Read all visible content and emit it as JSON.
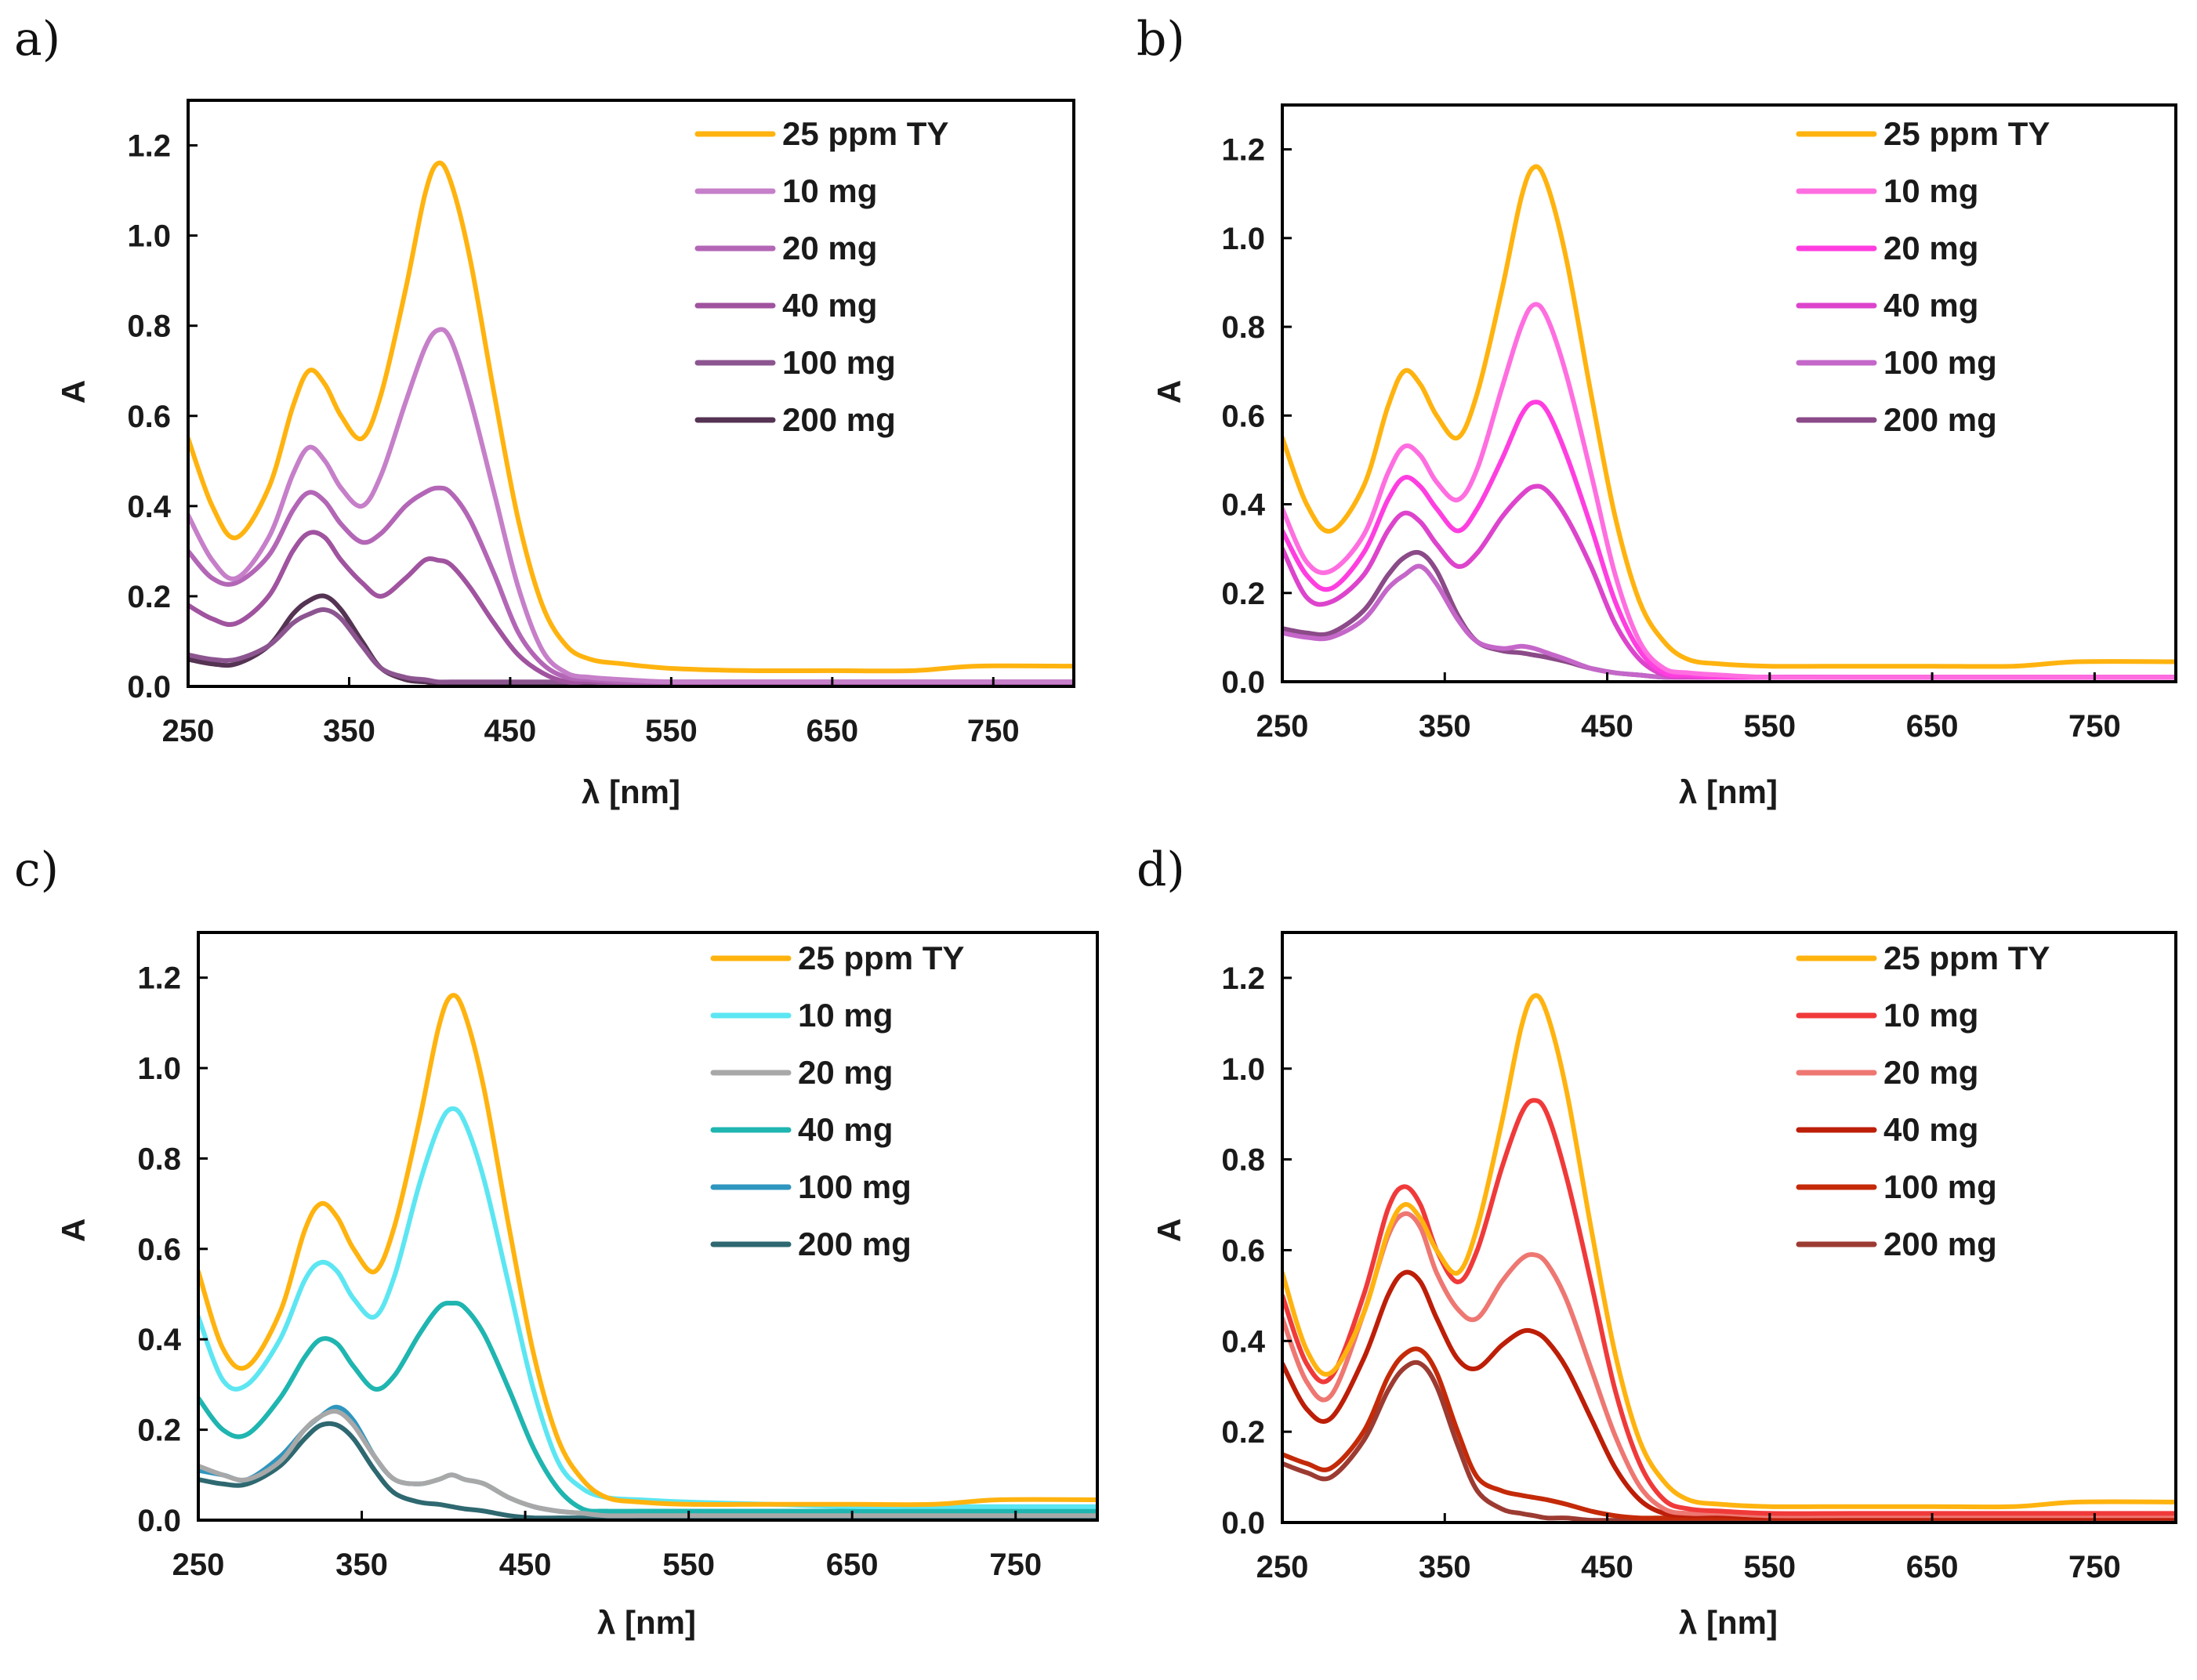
{
  "chart_data": [
    {
      "panel": "a)",
      "type": "line",
      "xlabel": "λ [nm]",
      "ylabel": "A",
      "xlim": [
        250,
        800
      ],
      "ylim": [
        0,
        1.3
      ],
      "xticks": [
        250,
        350,
        450,
        550,
        650,
        750
      ],
      "xtick_labels": [
        "250",
        "350",
        "450",
        "550",
        "650",
        "750"
      ],
      "yticks": [
        0,
        0.2,
        0.4,
        0.6,
        0.8,
        1.0,
        1.2
      ],
      "ytick_labels": [
        "0.0",
        "0.2",
        "0.4",
        "0.6",
        "0.8",
        "1.0",
        "1.2"
      ],
      "legend_position": "top-right",
      "x": [
        250,
        265,
        280,
        300,
        315,
        325,
        335,
        345,
        358,
        370,
        385,
        397,
        405,
        413,
        425,
        440,
        455,
        470,
        485,
        500,
        520,
        550,
        600,
        650,
        700,
        740,
        800
      ],
      "series": [
        {
          "name": "25 ppm TY",
          "color": "#ffb30f",
          "values": [
            0.55,
            0.4,
            0.33,
            0.44,
            0.62,
            0.7,
            0.67,
            0.6,
            0.55,
            0.65,
            0.88,
            1.09,
            1.16,
            1.12,
            0.95,
            0.65,
            0.37,
            0.18,
            0.09,
            0.06,
            0.05,
            0.04,
            0.035,
            0.035,
            0.035,
            0.045,
            0.045
          ]
        },
        {
          "name": "10 mg",
          "color": "#c67fc9",
          "values": [
            0.38,
            0.28,
            0.24,
            0.33,
            0.47,
            0.53,
            0.5,
            0.44,
            0.4,
            0.47,
            0.63,
            0.75,
            0.79,
            0.77,
            0.64,
            0.43,
            0.22,
            0.08,
            0.03,
            0.02,
            0.015,
            0.01,
            0.01,
            0.01,
            0.01,
            0.01,
            0.01
          ]
        },
        {
          "name": "20 mg",
          "color": "#b366b6",
          "values": [
            0.3,
            0.24,
            0.23,
            0.29,
            0.39,
            0.43,
            0.41,
            0.36,
            0.32,
            0.34,
            0.4,
            0.43,
            0.44,
            0.43,
            0.37,
            0.25,
            0.12,
            0.05,
            0.02,
            0.015,
            0.01,
            0.01,
            0.01,
            0.01,
            0.01,
            0.01,
            0.01
          ]
        },
        {
          "name": "40 mg",
          "color": "#a0539f",
          "values": [
            0.18,
            0.15,
            0.14,
            0.2,
            0.3,
            0.34,
            0.33,
            0.28,
            0.23,
            0.2,
            0.24,
            0.28,
            0.28,
            0.27,
            0.22,
            0.14,
            0.07,
            0.03,
            0.01,
            0.01,
            0.005,
            0.005,
            0.005,
            0.005,
            0.005,
            0.005,
            0.005
          ]
        },
        {
          "name": "100 mg",
          "color": "#8c5590",
          "values": [
            0.07,
            0.06,
            0.06,
            0.09,
            0.14,
            0.16,
            0.17,
            0.15,
            0.09,
            0.04,
            0.02,
            0.015,
            0.01,
            0.01,
            0.01,
            0.01,
            0.01,
            0.01,
            0.01,
            0.01,
            0.01,
            0.01,
            0.01,
            0.01,
            0.01,
            0.01,
            0.01
          ]
        },
        {
          "name": "200 mg",
          "color": "#553353",
          "values": [
            0.06,
            0.05,
            0.05,
            0.09,
            0.16,
            0.19,
            0.2,
            0.17,
            0.1,
            0.04,
            0.015,
            0.01,
            0.005,
            0.005,
            0.005,
            0.005,
            0.005,
            0.005,
            0.005,
            0.005,
            0.005,
            0.005,
            0.005,
            0.005,
            0.005,
            0.005,
            0.005
          ]
        }
      ]
    },
    {
      "panel": "b)",
      "type": "line",
      "xlabel": "λ [nm]",
      "ylabel": "A",
      "xlim": [
        250,
        800
      ],
      "ylim": [
        0,
        1.3
      ],
      "xticks": [
        250,
        350,
        450,
        550,
        650,
        750
      ],
      "xtick_labels": [
        "250",
        "350",
        "450",
        "550",
        "650",
        "750"
      ],
      "yticks": [
        0,
        0.2,
        0.4,
        0.6,
        0.8,
        1.0,
        1.2
      ],
      "ytick_labels": [
        "0.0",
        "0.2",
        "0.4",
        "0.6",
        "0.8",
        "1.0",
        "1.2"
      ],
      "legend_position": "top-right",
      "x": [
        250,
        265,
        280,
        300,
        315,
        325,
        335,
        345,
        358,
        370,
        385,
        397,
        405,
        413,
        425,
        440,
        455,
        470,
        485,
        500,
        520,
        550,
        600,
        650,
        700,
        740,
        800
      ],
      "series": [
        {
          "name": "25 ppm TY",
          "color": "#ffb30f",
          "values": [
            0.55,
            0.4,
            0.34,
            0.44,
            0.62,
            0.7,
            0.67,
            0.6,
            0.55,
            0.65,
            0.88,
            1.09,
            1.16,
            1.12,
            0.95,
            0.65,
            0.37,
            0.18,
            0.09,
            0.05,
            0.04,
            0.035,
            0.035,
            0.035,
            0.035,
            0.045,
            0.045
          ]
        },
        {
          "name": "10 mg",
          "color": "#ff6ee0",
          "values": [
            0.39,
            0.27,
            0.25,
            0.33,
            0.47,
            0.53,
            0.51,
            0.45,
            0.41,
            0.48,
            0.66,
            0.8,
            0.85,
            0.82,
            0.69,
            0.47,
            0.24,
            0.09,
            0.03,
            0.02,
            0.015,
            0.01,
            0.01,
            0.01,
            0.01,
            0.01,
            0.01
          ]
        },
        {
          "name": "20 mg",
          "color": "#ff3ee0",
          "values": [
            0.34,
            0.24,
            0.21,
            0.29,
            0.41,
            0.46,
            0.44,
            0.39,
            0.34,
            0.39,
            0.5,
            0.6,
            0.63,
            0.61,
            0.51,
            0.35,
            0.18,
            0.07,
            0.02,
            0.015,
            0.01,
            0.01,
            0.01,
            0.01,
            0.01,
            0.01,
            0.01
          ]
        },
        {
          "name": "40 mg",
          "color": "#dd44cc",
          "values": [
            0.3,
            0.19,
            0.18,
            0.24,
            0.34,
            0.38,
            0.36,
            0.31,
            0.26,
            0.29,
            0.37,
            0.42,
            0.44,
            0.43,
            0.37,
            0.26,
            0.13,
            0.05,
            0.015,
            0.01,
            0.01,
            0.01,
            0.01,
            0.01,
            0.01,
            0.01,
            0.01
          ]
        },
        {
          "name": "100 mg",
          "color": "#c467c9",
          "values": [
            0.11,
            0.1,
            0.1,
            0.14,
            0.21,
            0.24,
            0.26,
            0.22,
            0.14,
            0.09,
            0.075,
            0.08,
            0.075,
            0.065,
            0.05,
            0.03,
            0.02,
            0.015,
            0.01,
            0.01,
            0.01,
            0.01,
            0.01,
            0.01,
            0.01,
            0.01,
            0.01
          ]
        },
        {
          "name": "200 mg",
          "color": "#8b4a88",
          "values": [
            0.12,
            0.11,
            0.11,
            0.16,
            0.24,
            0.28,
            0.29,
            0.25,
            0.15,
            0.09,
            0.07,
            0.065,
            0.06,
            0.055,
            0.045,
            0.03,
            0.02,
            0.015,
            0.01,
            0.01,
            0.01,
            0.01,
            0.01,
            0.01,
            0.01,
            0.01,
            0.01
          ]
        }
      ]
    },
    {
      "panel": "c)",
      "type": "line",
      "xlabel": "λ [nm]",
      "ylabel": "A",
      "xlim": [
        250,
        800
      ],
      "ylim": [
        0,
        1.3
      ],
      "xticks": [
        250,
        350,
        450,
        550,
        650,
        750
      ],
      "xtick_labels": [
        "250",
        "350",
        "450",
        "550",
        "650",
        "750"
      ],
      "yticks": [
        0,
        0.2,
        0.4,
        0.6,
        0.8,
        1.0,
        1.2
      ],
      "ytick_labels": [
        "0.0",
        "0.2",
        "0.4",
        "0.6",
        "0.8",
        "1.0",
        "1.2"
      ],
      "legend_position": "top-right",
      "x": [
        250,
        265,
        280,
        300,
        315,
        325,
        335,
        345,
        358,
        370,
        385,
        397,
        405,
        413,
        425,
        440,
        455,
        470,
        485,
        500,
        520,
        550,
        600,
        650,
        700,
        740,
        800
      ],
      "series": [
        {
          "name": "25 ppm TY",
          "color": "#ffb30f",
          "values": [
            0.55,
            0.38,
            0.34,
            0.46,
            0.64,
            0.7,
            0.67,
            0.6,
            0.55,
            0.65,
            0.88,
            1.09,
            1.16,
            1.12,
            0.95,
            0.65,
            0.37,
            0.18,
            0.09,
            0.05,
            0.04,
            0.035,
            0.035,
            0.035,
            0.035,
            0.045,
            0.045
          ]
        },
        {
          "name": "10 mg",
          "color": "#5ce6f2",
          "values": [
            0.45,
            0.31,
            0.3,
            0.4,
            0.53,
            0.57,
            0.55,
            0.49,
            0.45,
            0.54,
            0.74,
            0.87,
            0.91,
            0.88,
            0.75,
            0.52,
            0.29,
            0.13,
            0.07,
            0.05,
            0.045,
            0.04,
            0.035,
            0.03,
            0.03,
            0.03,
            0.03
          ]
        },
        {
          "name": "20 mg",
          "color": "#a8a8a8",
          "values": [
            0.12,
            0.1,
            0.09,
            0.13,
            0.2,
            0.23,
            0.24,
            0.21,
            0.14,
            0.09,
            0.08,
            0.09,
            0.1,
            0.09,
            0.08,
            0.05,
            0.03,
            0.02,
            0.015,
            0.01,
            0.01,
            0.01,
            0.01,
            0.01,
            0.01,
            0.01,
            0.01
          ]
        },
        {
          "name": "40 mg",
          "color": "#1fb5b0",
          "values": [
            0.27,
            0.2,
            0.19,
            0.27,
            0.36,
            0.4,
            0.39,
            0.34,
            0.29,
            0.32,
            0.41,
            0.47,
            0.48,
            0.47,
            0.41,
            0.29,
            0.16,
            0.07,
            0.025,
            0.02,
            0.02,
            0.02,
            0.02,
            0.02,
            0.02,
            0.02,
            0.02
          ]
        },
        {
          "name": "100 mg",
          "color": "#2e96bf",
          "values": [
            0.11,
            0.1,
            0.09,
            0.14,
            0.2,
            0.23,
            0.25,
            0.22,
            0.14,
            0.09,
            0.08,
            0.09,
            0.1,
            0.09,
            0.08,
            0.05,
            0.03,
            0.02,
            0.015,
            0.01,
            0.01,
            0.01,
            0.01,
            0.01,
            0.01,
            0.01,
            0.01
          ]
        },
        {
          "name": "200 mg",
          "color": "#2e6870",
          "values": [
            0.09,
            0.08,
            0.08,
            0.12,
            0.18,
            0.21,
            0.21,
            0.18,
            0.11,
            0.06,
            0.04,
            0.035,
            0.03,
            0.025,
            0.02,
            0.01,
            0.005,
            0.005,
            0.005,
            0.005,
            0.005,
            0.005,
            0.005,
            0.005,
            0.005,
            0.005,
            0.005
          ]
        }
      ]
    },
    {
      "panel": "d)",
      "type": "line",
      "xlabel": "λ [nm]",
      "ylabel": "A",
      "xlim": [
        250,
        800
      ],
      "ylim": [
        0,
        1.3
      ],
      "xticks": [
        250,
        350,
        450,
        550,
        650,
        750
      ],
      "xtick_labels": [
        "250",
        "350",
        "450",
        "550",
        "650",
        "750"
      ],
      "yticks": [
        0,
        0.2,
        0.4,
        0.6,
        0.8,
        1.0,
        1.2
      ],
      "ytick_labels": [
        "0.0",
        "0.2",
        "0.4",
        "0.6",
        "0.8",
        "1.0",
        "1.2"
      ],
      "legend_position": "top-right",
      "x": [
        250,
        265,
        280,
        300,
        315,
        325,
        335,
        345,
        358,
        370,
        385,
        397,
        405,
        413,
        425,
        440,
        455,
        470,
        485,
        500,
        520,
        550,
        600,
        650,
        700,
        740,
        800
      ],
      "series": [
        {
          "name": "25 ppm TY",
          "color": "#ffb30f",
          "values": [
            0.55,
            0.38,
            0.33,
            0.46,
            0.64,
            0.7,
            0.67,
            0.6,
            0.55,
            0.65,
            0.88,
            1.09,
            1.16,
            1.12,
            0.95,
            0.65,
            0.37,
            0.18,
            0.09,
            0.05,
            0.04,
            0.035,
            0.035,
            0.035,
            0.035,
            0.045,
            0.045
          ]
        },
        {
          "name": "10 mg",
          "color": "#f03a3a",
          "values": [
            0.5,
            0.35,
            0.32,
            0.5,
            0.69,
            0.74,
            0.7,
            0.6,
            0.53,
            0.6,
            0.78,
            0.9,
            0.93,
            0.9,
            0.76,
            0.53,
            0.29,
            0.13,
            0.05,
            0.03,
            0.025,
            0.02,
            0.02,
            0.02,
            0.02,
            0.02,
            0.02
          ]
        },
        {
          "name": "20 mg",
          "color": "#ee7772",
          "values": [
            0.45,
            0.31,
            0.28,
            0.46,
            0.63,
            0.68,
            0.65,
            0.55,
            0.47,
            0.45,
            0.53,
            0.58,
            0.59,
            0.57,
            0.49,
            0.34,
            0.19,
            0.08,
            0.03,
            0.02,
            0.02,
            0.015,
            0.015,
            0.015,
            0.015,
            0.015,
            0.015
          ]
        },
        {
          "name": "40 mg",
          "color": "#bd1e08",
          "values": [
            0.35,
            0.25,
            0.23,
            0.36,
            0.5,
            0.55,
            0.53,
            0.45,
            0.36,
            0.34,
            0.39,
            0.42,
            0.42,
            0.4,
            0.34,
            0.23,
            0.12,
            0.05,
            0.02,
            0.015,
            0.015,
            0.01,
            0.01,
            0.01,
            0.01,
            0.01,
            0.01
          ]
        },
        {
          "name": "100 mg",
          "color": "#c42a08",
          "values": [
            0.15,
            0.13,
            0.12,
            0.2,
            0.32,
            0.37,
            0.38,
            0.33,
            0.2,
            0.1,
            0.07,
            0.06,
            0.055,
            0.05,
            0.04,
            0.025,
            0.015,
            0.01,
            0.01,
            0.01,
            0.01,
            0.01,
            0.01,
            0.01,
            0.01,
            0.01,
            0.01
          ]
        },
        {
          "name": "200 mg",
          "color": "#9c3b32",
          "values": [
            0.13,
            0.11,
            0.1,
            0.18,
            0.29,
            0.34,
            0.35,
            0.3,
            0.17,
            0.07,
            0.03,
            0.02,
            0.015,
            0.01,
            0.01,
            0.005,
            0.005,
            0.005,
            0.005,
            0.005,
            0.005,
            0.005,
            0.005,
            0.005,
            0.005,
            0.005,
            0.005
          ]
        }
      ]
    }
  ]
}
